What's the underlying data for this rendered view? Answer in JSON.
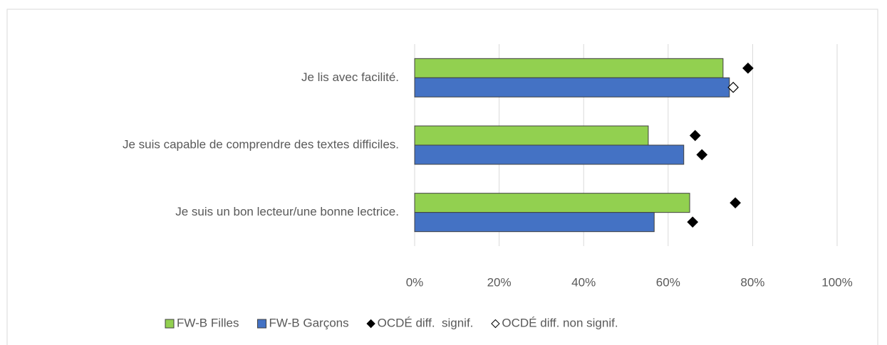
{
  "chart_data": {
    "type": "hbar",
    "categories": [
      "Je lis avec facilité.",
      "Je suis capable de comprendre des textes difficiles.",
      "Je suis un bon lecteur/une bonne lectrice."
    ],
    "series": [
      {
        "name": "FW-B Filles",
        "color": "#92d050",
        "values": [
          73.0,
          55.3,
          65.1
        ],
        "oecd_values": [
          78.9,
          66.4,
          75.9
        ],
        "oecd_significant": [
          true,
          true,
          true
        ]
      },
      {
        "name": "FW-B Garçons",
        "color": "#4472c4",
        "values": [
          74.5,
          63.7,
          56.7
        ],
        "oecd_values": [
          75.4,
          68.0,
          65.8
        ],
        "oecd_significant": [
          false,
          true,
          true
        ]
      }
    ],
    "markers": [
      {
        "name": "OCDÉ diff.  signif.",
        "fill": "#000000"
      },
      {
        "name": "OCDÉ diff. non signif.",
        "fill": "#ffffff"
      }
    ],
    "xlim": [
      0,
      100
    ],
    "xticks": [
      {
        "value": 0,
        "label": "0%"
      },
      {
        "value": 20,
        "label": "20%"
      },
      {
        "value": 40,
        "label": "40%"
      },
      {
        "value": 60,
        "label": "60%"
      },
      {
        "value": 80,
        "label": "80%"
      },
      {
        "value": 100,
        "label": "100%"
      }
    ],
    "grid": true,
    "legend": "bottom"
  }
}
